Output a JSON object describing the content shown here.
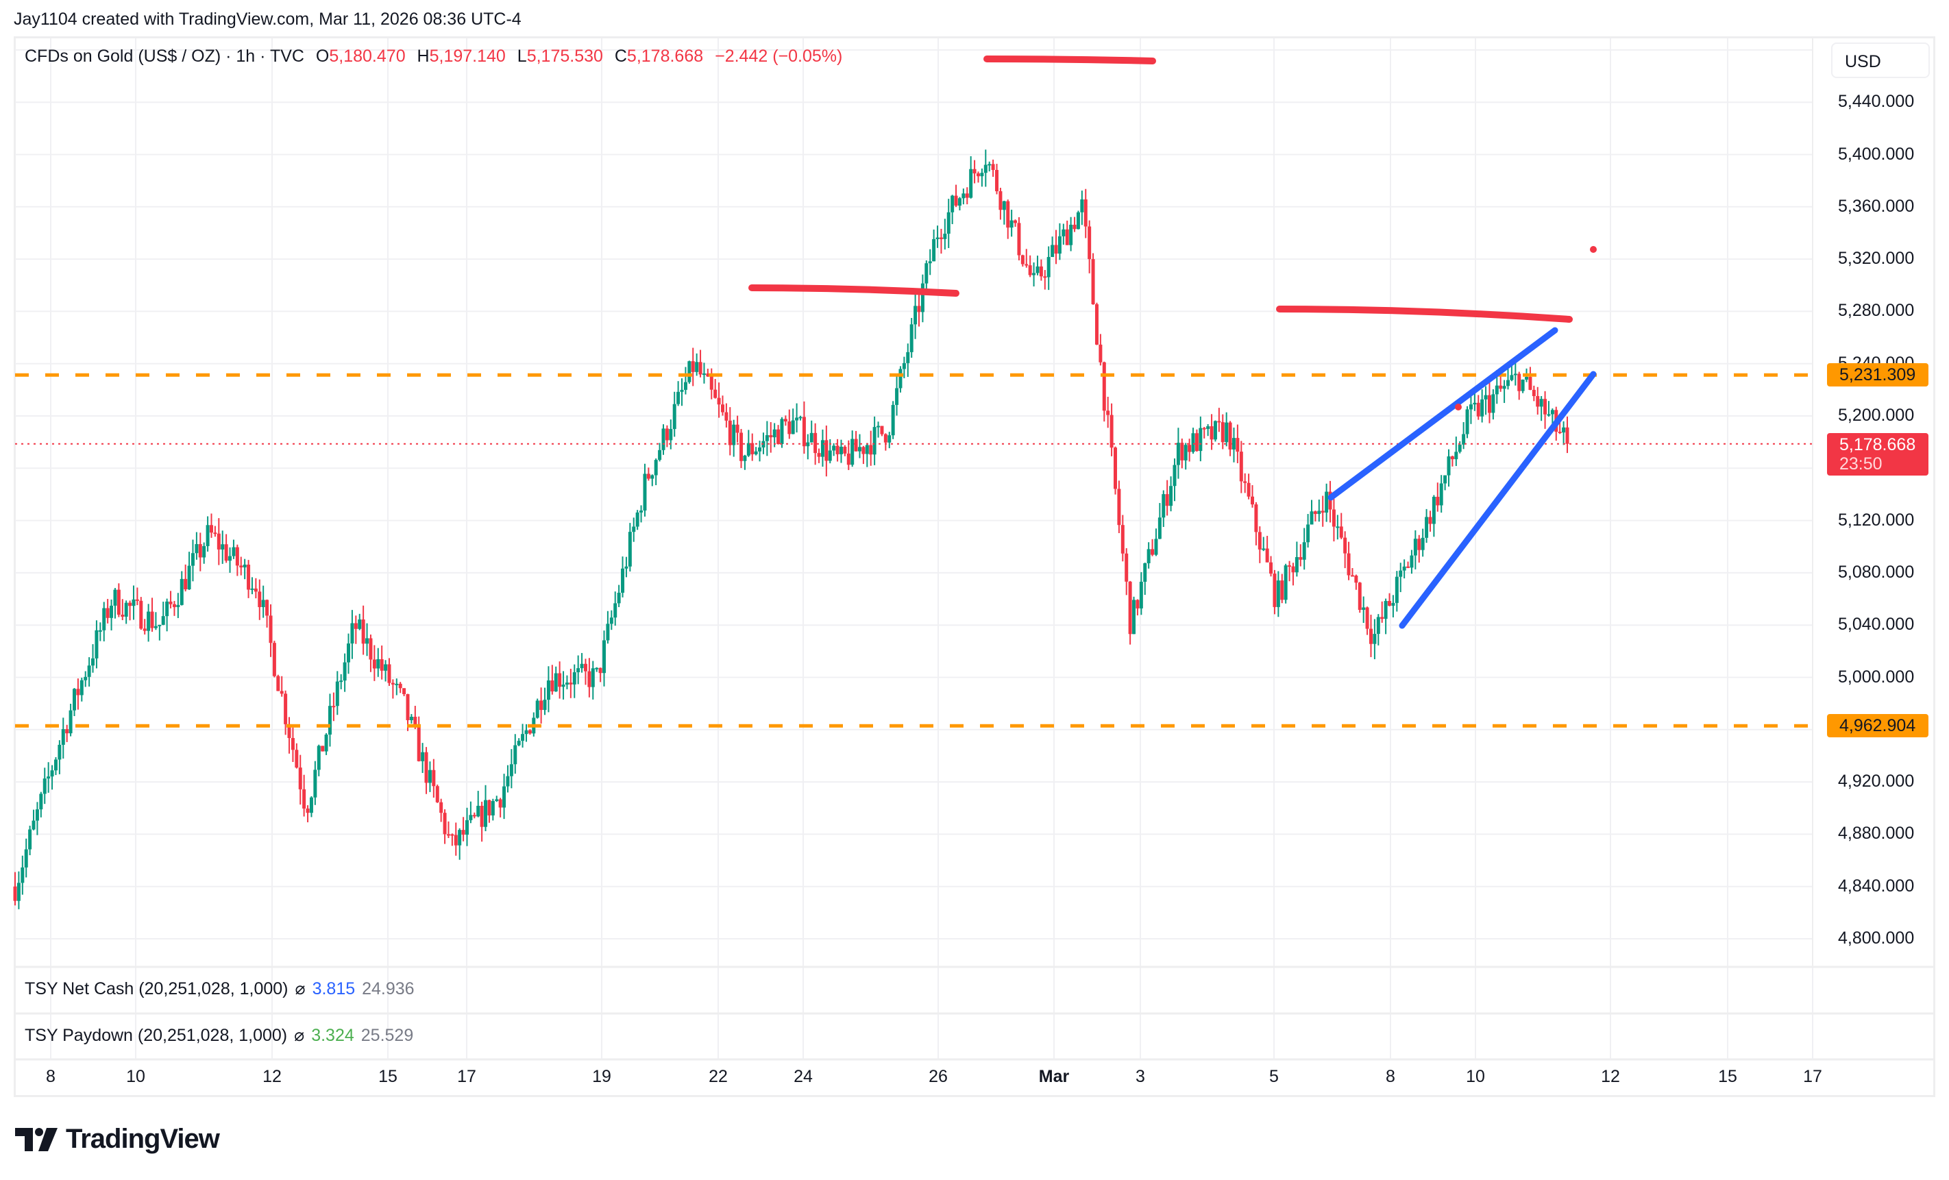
{
  "attribution": "Jay1104 created with TradingView.com, Mar 11, 2026 08:36 UTC-4",
  "legend": {
    "symbol": "CFDs on Gold (US$ / OZ) · 1h · TVC",
    "o_label": "O",
    "o_value": "5,180.470",
    "h_label": "H",
    "h_value": "5,197.140",
    "l_label": "L",
    "l_value": "5,175.530",
    "c_label": "C",
    "c_value": "5,178.668",
    "change": "−2.442 (−0.05%)"
  },
  "currency": "USD",
  "price_axis": {
    "ticks": [
      "5,440.000",
      "5,400.000",
      "5,360.000",
      "5,320.000",
      "5,280.000",
      "5,240.000",
      "5,200.000",
      "5,120.000",
      "5,080.000",
      "5,040.000",
      "5,000.000",
      "4,920.000",
      "4,880.000",
      "4,840.000",
      "4,800.000"
    ],
    "tick_values": [
      5440,
      5400,
      5360,
      5320,
      5280,
      5240,
      5200,
      5120,
      5080,
      5040,
      5000,
      4920,
      4880,
      4840,
      4800
    ],
    "resistance_tag": "5,231.309",
    "support_tag": "4,962.904",
    "last_price_tag": "5,178.668",
    "countdown": "23:50"
  },
  "indicators": [
    {
      "name": "TSY Net Cash (20,251,028, 1,000)",
      "symbol": "⌀",
      "value1": "3.815",
      "value2": "24.936"
    },
    {
      "name": "TSY Paydown (20,251,028, 1,000)",
      "symbol": "⌀",
      "value1": "3.324",
      "value2": "25.529"
    }
  ],
  "time_axis": [
    {
      "label": "8",
      "x": 74
    },
    {
      "label": "10",
      "x": 198
    },
    {
      "label": "12",
      "x": 397
    },
    {
      "label": "15",
      "x": 566
    },
    {
      "label": "17",
      "x": 681
    },
    {
      "label": "19",
      "x": 878
    },
    {
      "label": "22",
      "x": 1048
    },
    {
      "label": "24",
      "x": 1172
    },
    {
      "label": "26",
      "x": 1369
    },
    {
      "label": "Mar",
      "x": 1538,
      "bold": true
    },
    {
      "label": "3",
      "x": 1664
    },
    {
      "label": "5",
      "x": 1859
    },
    {
      "label": "8",
      "x": 2029
    },
    {
      "label": "10",
      "x": 2153
    },
    {
      "label": "12",
      "x": 2350
    },
    {
      "label": "15",
      "x": 2521
    },
    {
      "label": "17",
      "x": 2645
    }
  ],
  "colors": {
    "up": "#089981",
    "down": "#f23645",
    "hline": "#ff9800",
    "trend": "#2962ff",
    "drawing": "#f23645",
    "grid": "#f0f0f3",
    "last_price": "#f23645"
  },
  "brand": "TradingView",
  "chart_data": {
    "type": "candlestick",
    "title": "CFDs on Gold (US$ / OZ) · 1h · TVC",
    "xlabel": "",
    "ylabel": "USD",
    "ylim": [
      4780,
      5490
    ],
    "x_ticks": [
      "8",
      "10",
      "12",
      "15",
      "17",
      "19",
      "22",
      "24",
      "26",
      "Mar",
      "3",
      "5",
      "8",
      "10",
      "12",
      "15",
      "17"
    ],
    "last": {
      "open": 5180.47,
      "high": 5197.14,
      "low": 5175.53,
      "close": 5178.668,
      "change": -2.442,
      "change_pct": -0.05
    },
    "horizontal_lines": [
      {
        "price": 5231.309,
        "style": "dashed",
        "color": "#ff9800"
      },
      {
        "price": 4962.904,
        "style": "dashed",
        "color": "#ff9800"
      },
      {
        "price": 5178.668,
        "style": "dotted",
        "color": "#f23645",
        "label": "last price"
      }
    ],
    "price_path_waypoints": [
      {
        "date": "Feb 6",
        "price": 4840
      },
      {
        "date": "Feb 8",
        "price": 4960
      },
      {
        "date": "Feb 9",
        "price": 5060
      },
      {
        "date": "Feb 10",
        "price": 5040
      },
      {
        "date": "Feb 11",
        "price": 5110
      },
      {
        "date": "Feb 12",
        "price": 5070
      },
      {
        "date": "Feb 13",
        "price": 4900
      },
      {
        "date": "Feb 15",
        "price": 5040
      },
      {
        "date": "Feb 16",
        "price": 4980
      },
      {
        "date": "Feb 17",
        "price": 4870
      },
      {
        "date": "Feb 18",
        "price": 4910
      },
      {
        "date": "Feb 19",
        "price": 5000
      },
      {
        "date": "Feb 21",
        "price": 5000
      },
      {
        "date": "Feb 22",
        "price": 5150
      },
      {
        "date": "Feb 23",
        "price": 5240
      },
      {
        "date": "Feb 24",
        "price": 5170
      },
      {
        "date": "Feb 25",
        "price": 5195
      },
      {
        "date": "Feb 26",
        "price": 5165
      },
      {
        "date": "Feb 27",
        "price": 5190
      },
      {
        "date": "Mar 1",
        "price": 5340
      },
      {
        "date": "Mar 2",
        "price": 5400
      },
      {
        "date": "Mar 2b",
        "price": 5300
      },
      {
        "date": "Mar 3",
        "price": 5360
      },
      {
        "date": "Mar 3b",
        "price": 5040
      },
      {
        "date": "Mar 4",
        "price": 5175
      },
      {
        "date": "Mar 5",
        "price": 5190
      },
      {
        "date": "Mar 6",
        "price": 5060
      },
      {
        "date": "Mar 7",
        "price": 5140
      },
      {
        "date": "Mar 8",
        "price": 5030
      },
      {
        "date": "Mar 9",
        "price": 5110
      },
      {
        "date": "Mar 10",
        "price": 5200
      },
      {
        "date": "Mar 10b",
        "price": 5230
      },
      {
        "date": "Mar 11",
        "price": 5178.668
      }
    ],
    "drawings": [
      {
        "type": "freehand",
        "color": "#f23645",
        "points": [
          [
            1440,
            86
          ],
          [
            1682,
            89
          ]
        ]
      },
      {
        "type": "freehand",
        "color": "#f23645",
        "points": [
          [
            1097,
            420
          ],
          [
            1395,
            428
          ]
        ]
      },
      {
        "type": "freehand",
        "color": "#f23645",
        "points": [
          [
            1867,
            451
          ],
          [
            2290,
            466
          ]
        ]
      },
      {
        "type": "trendline",
        "color": "#2962ff",
        "points": [
          [
            1942,
            726
          ],
          [
            2269,
            482
          ]
        ]
      },
      {
        "type": "trendline",
        "color": "#2962ff",
        "points": [
          [
            2046,
            913
          ],
          [
            2325,
            546
          ]
        ]
      },
      {
        "type": "dot",
        "color": "#f23645",
        "points": [
          [
            2325,
            364
          ]
        ]
      },
      {
        "type": "dot",
        "color": "#f23645",
        "points": [
          [
            2128,
            594
          ]
        ]
      }
    ],
    "legend_position": "top-left",
    "grid": true
  }
}
